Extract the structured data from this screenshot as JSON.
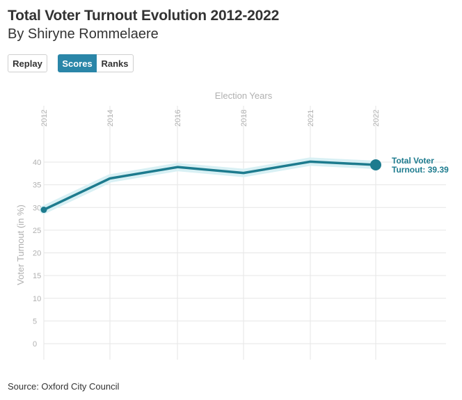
{
  "header": {
    "title": "Total Voter Turnout Evolution 2012-2022",
    "subtitle": "By Shiryne Rommelaere"
  },
  "controls": {
    "replay_label": "Replay",
    "scores_label": "Scores",
    "ranks_label": "Ranks",
    "active": "Scores"
  },
  "footer": {
    "source": "Source: Oxford City Council"
  },
  "colors": {
    "line": "#1d7b8e",
    "halo": "#d8f0f4",
    "active_button": "#2a86a8",
    "grid": "#e6e6e6"
  },
  "chart_data": {
    "type": "line",
    "title": "Total Voter Turnout Evolution 2012-2022",
    "xlabel": "Election Years",
    "ylabel": "Voter Turnout (in %)",
    "x_position": "top",
    "x_tick_orientation": "vertical",
    "x": [
      "2012",
      "2014",
      "2016",
      "2018",
      "2021",
      "2022"
    ],
    "ylim": [
      0,
      40
    ],
    "yticks": [
      0,
      5,
      10,
      15,
      20,
      25,
      30,
      35,
      40
    ],
    "grid": true,
    "series": [
      {
        "name": "Total Voter Turnout",
        "values": [
          29.5,
          36.4,
          38.9,
          37.6,
          40.1,
          39.39
        ]
      }
    ],
    "end_label": {
      "line1": "Total Voter",
      "line2": "Turnout: 39.39"
    }
  }
}
